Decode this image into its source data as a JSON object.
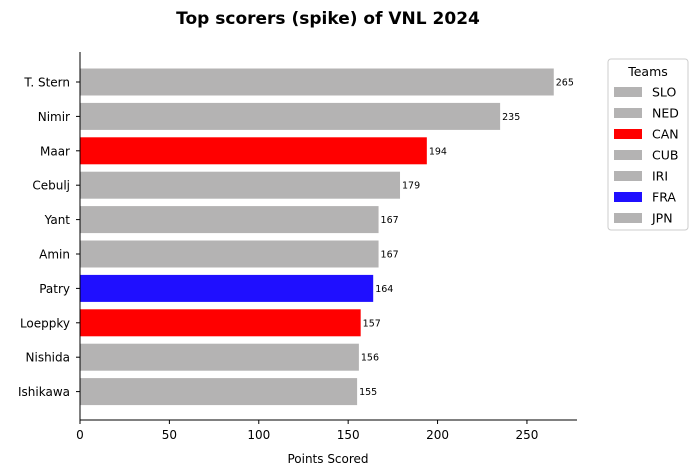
{
  "chart_data": {
    "type": "bar",
    "orientation": "horizontal",
    "title": "Top scorers (spike) of VNL 2024",
    "xlabel": "Points Scored",
    "ylabel": "",
    "xlim": [
      0,
      278
    ],
    "xticks": [
      0,
      50,
      100,
      150,
      200,
      250
    ],
    "grid": false,
    "legend_title": "Teams",
    "legend_position": "outside-upper-right",
    "team_colors": {
      "SLO": "#b4b3b3",
      "NED": "#b4b3b3",
      "CAN": "#ff0000",
      "CUB": "#b4b3b3",
      "IRI": "#b4b3b3",
      "FRA": "#1f0fff",
      "JPN": "#b4b3b3"
    },
    "legend": [
      "SLO",
      "NED",
      "CAN",
      "CUB",
      "IRI",
      "FRA",
      "JPN"
    ],
    "categories": [
      "T. Stern",
      "Nimir",
      "Maar",
      "Cebulj",
      "Yant",
      "Amin",
      "Patry",
      "Loeppky",
      "Nishida",
      "Ishikawa"
    ],
    "values": [
      265,
      235,
      194,
      179,
      167,
      167,
      164,
      157,
      156,
      155
    ],
    "bar_colors": [
      "#b4b3b3",
      "#b4b3b3",
      "#ff0000",
      "#b4b3b3",
      "#b4b3b3",
      "#b4b3b3",
      "#1f0fff",
      "#ff0000",
      "#b4b3b3",
      "#b4b3b3"
    ]
  }
}
